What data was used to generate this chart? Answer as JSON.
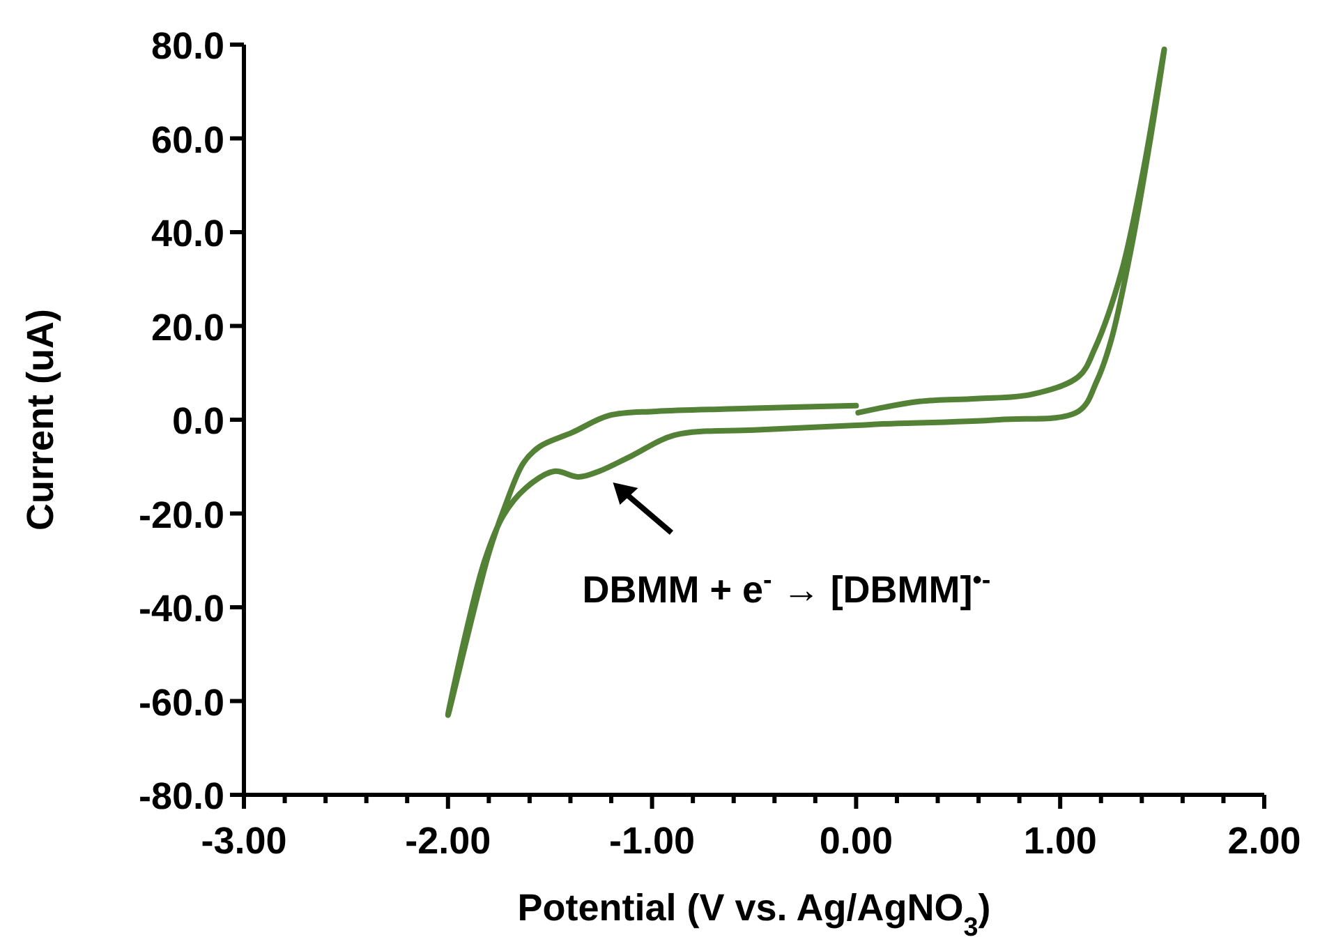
{
  "chart_data": {
    "type": "line",
    "xlabel": "Potential (V vs. Ag/AgNO$_{3}$)",
    "ylabel": "Current (uA)",
    "x": [
      0.01,
      0.31,
      0.59,
      0.86,
      1.09,
      1.17,
      1.3,
      1.41,
      1.51,
      1.45,
      1.35,
      1.25,
      1.18,
      1.09,
      0.7,
      0.13,
      0.0,
      -0.5,
      -0.89,
      -1.1,
      -1.26,
      -1.36,
      -1.48,
      -1.62,
      -1.73,
      -1.82,
      -1.91,
      -2.0,
      -1.8,
      -1.72,
      -1.63,
      -1.55,
      -1.39,
      -1.21,
      -0.98,
      -0.53,
      0.0
    ],
    "series": [
      {
        "color": "#538135",
        "values": [
          1.5,
          3.9,
          4.5,
          5.4,
          9.2,
          15.2,
          31.5,
          53.8,
          79,
          62,
          37,
          17,
          8.3,
          1.8,
          0,
          -0.9,
          -1.2,
          -2.2,
          -3.3,
          -7.7,
          -11,
          -12.2,
          -11,
          -14.6,
          -20.5,
          -30,
          -45,
          -63,
          -28.5,
          -18.4,
          -9.2,
          -5.7,
          -2.7,
          0.9,
          1.8,
          2.4,
          3.0
        ]
      }
    ],
    "xlim": [
      -3,
      2
    ],
    "xticks": [
      {
        "value": -3,
        "label": "-3.00"
      },
      {
        "value": -2.8,
        "label": null
      },
      {
        "value": -2.6,
        "label": null
      },
      {
        "value": -2.4,
        "label": null
      },
      {
        "value": -2.2,
        "label": null
      },
      {
        "value": -2,
        "label": "-2.00"
      },
      {
        "value": -1.8,
        "label": null
      },
      {
        "value": -1.6,
        "label": null
      },
      {
        "value": -1.4,
        "label": null
      },
      {
        "value": -1.2,
        "label": null
      },
      {
        "value": -1,
        "label": "-1.00"
      },
      {
        "value": -0.8,
        "label": null
      },
      {
        "value": -0.6,
        "label": null
      },
      {
        "value": -0.4,
        "label": null
      },
      {
        "value": -0.2,
        "label": null
      },
      {
        "value": 0,
        "label": "0.00"
      },
      {
        "value": 0.2,
        "label": null
      },
      {
        "value": 0.4,
        "label": null
      },
      {
        "value": 0.6,
        "label": null
      },
      {
        "value": 0.8,
        "label": null
      },
      {
        "value": 1,
        "label": "1.00"
      },
      {
        "value": 1.2,
        "label": null
      },
      {
        "value": 1.4,
        "label": null
      },
      {
        "value": 1.6,
        "label": null
      },
      {
        "value": 1.8,
        "label": null
      },
      {
        "value": 2,
        "label": "2.00"
      }
    ],
    "ylim": [
      -80,
      80
    ],
    "yticks": [
      {
        "value": -80,
        "label": "-80.0"
      },
      {
        "value": -60,
        "label": "-60.0"
      },
      {
        "value": -40,
        "label": "-40.0"
      },
      {
        "value": -20,
        "label": "-20.0"
      },
      {
        "value": 0,
        "label": "0.0"
      },
      {
        "value": 20,
        "label": "20.0"
      },
      {
        "value": 40,
        "label": "40.0"
      },
      {
        "value": 60,
        "label": "60.0"
      },
      {
        "value": 80,
        "label": "80.0"
      }
    ],
    "grid": false,
    "marker": "none",
    "line_style": "solid",
    "annotations": [
      {
        "text": "DBMM + e$^{-}$ → [DBMM]$^{•-}$",
        "x": -1.26,
        "y": -11
      }
    ]
  }
}
